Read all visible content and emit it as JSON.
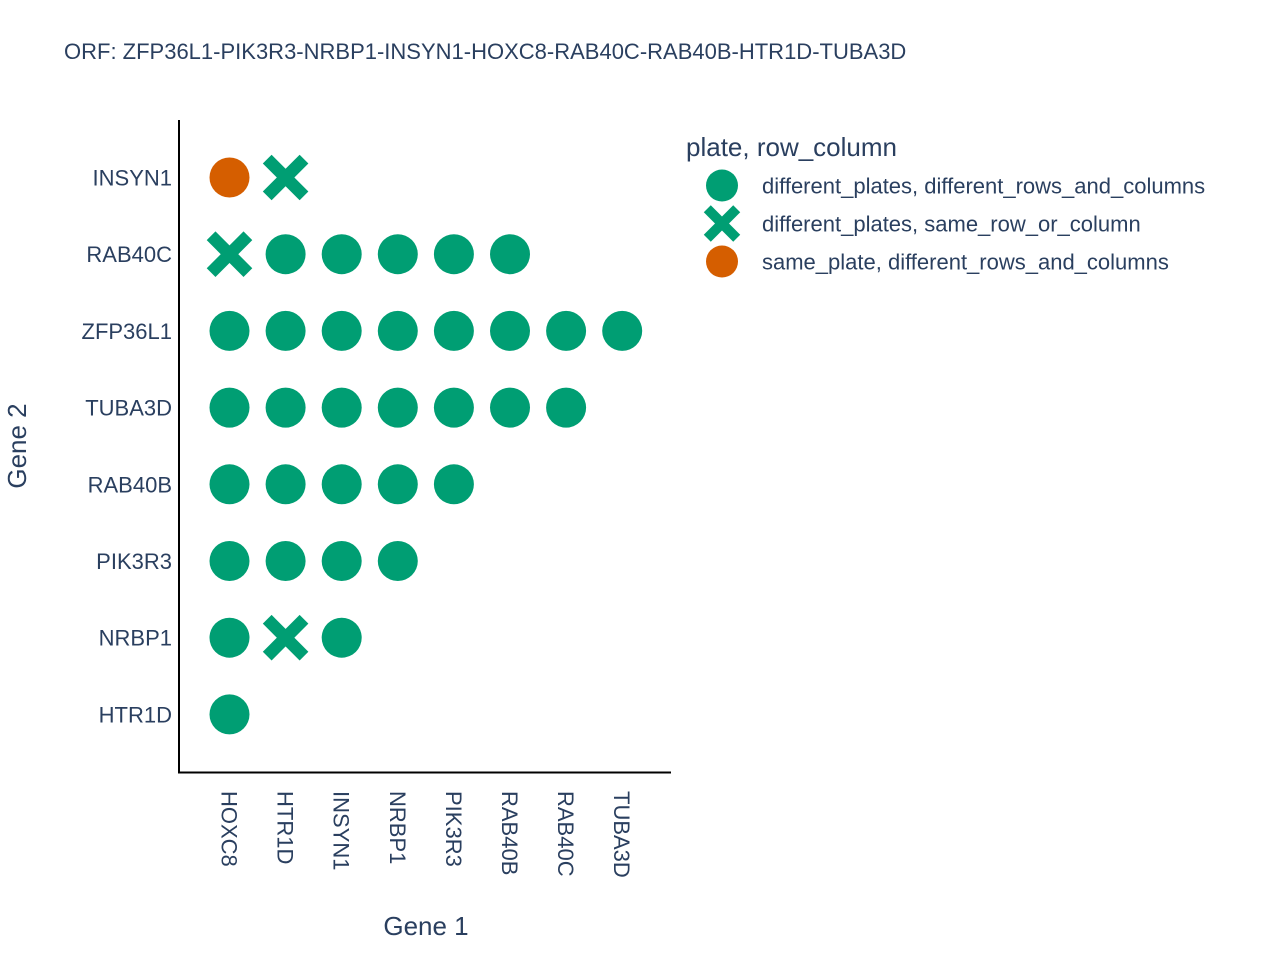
{
  "chart_data": {
    "type": "scatter",
    "title": "ORF: ZFP36L1-PIK3R3-NRBP1-INSYN1-HOXC8-RAB40C-RAB40B-HTR1D-TUBA3D",
    "xlabel": "Gene 1",
    "ylabel": "Gene 2",
    "x_categories": [
      "HOXC8",
      "HTR1D",
      "INSYN1",
      "NRBP1",
      "PIK3R3",
      "RAB40B",
      "RAB40C",
      "TUBA3D"
    ],
    "y_categories": [
      "INSYN1",
      "RAB40C",
      "ZFP36L1",
      "TUBA3D",
      "RAB40B",
      "PIK3R3",
      "NRBP1",
      "HTR1D"
    ],
    "legend": {
      "title": "plate, row_column",
      "position": "top-right"
    },
    "series": [
      {
        "name": "different_plates, different_rows_and_columns",
        "symbol": "circle",
        "color": "#009e73",
        "points": [
          [
            "HTR1D",
            "RAB40C"
          ],
          [
            "INSYN1",
            "RAB40C"
          ],
          [
            "NRBP1",
            "RAB40C"
          ],
          [
            "PIK3R3",
            "RAB40C"
          ],
          [
            "RAB40B",
            "RAB40C"
          ],
          [
            "HOXC8",
            "ZFP36L1"
          ],
          [
            "HTR1D",
            "ZFP36L1"
          ],
          [
            "INSYN1",
            "ZFP36L1"
          ],
          [
            "NRBP1",
            "ZFP36L1"
          ],
          [
            "PIK3R3",
            "ZFP36L1"
          ],
          [
            "RAB40B",
            "ZFP36L1"
          ],
          [
            "RAB40C",
            "ZFP36L1"
          ],
          [
            "TUBA3D",
            "ZFP36L1"
          ],
          [
            "HOXC8",
            "TUBA3D"
          ],
          [
            "HTR1D",
            "TUBA3D"
          ],
          [
            "INSYN1",
            "TUBA3D"
          ],
          [
            "NRBP1",
            "TUBA3D"
          ],
          [
            "PIK3R3",
            "TUBA3D"
          ],
          [
            "RAB40B",
            "TUBA3D"
          ],
          [
            "RAB40C",
            "TUBA3D"
          ],
          [
            "HOXC8",
            "RAB40B"
          ],
          [
            "HTR1D",
            "RAB40B"
          ],
          [
            "INSYN1",
            "RAB40B"
          ],
          [
            "NRBP1",
            "RAB40B"
          ],
          [
            "PIK3R3",
            "RAB40B"
          ],
          [
            "HOXC8",
            "PIK3R3"
          ],
          [
            "HTR1D",
            "PIK3R3"
          ],
          [
            "INSYN1",
            "PIK3R3"
          ],
          [
            "NRBP1",
            "PIK3R3"
          ],
          [
            "HOXC8",
            "NRBP1"
          ],
          [
            "INSYN1",
            "NRBP1"
          ],
          [
            "HOXC8",
            "HTR1D"
          ]
        ]
      },
      {
        "name": "different_plates, same_row_or_column",
        "symbol": "x",
        "color": "#009e73",
        "points": [
          [
            "HTR1D",
            "INSYN1"
          ],
          [
            "HOXC8",
            "RAB40C"
          ],
          [
            "HTR1D",
            "NRBP1"
          ]
        ]
      },
      {
        "name": "same_plate, different_rows_and_columns",
        "symbol": "circle",
        "color": "#d55e00",
        "points": [
          [
            "HOXC8",
            "INSYN1"
          ]
        ]
      }
    ],
    "grid": false
  }
}
